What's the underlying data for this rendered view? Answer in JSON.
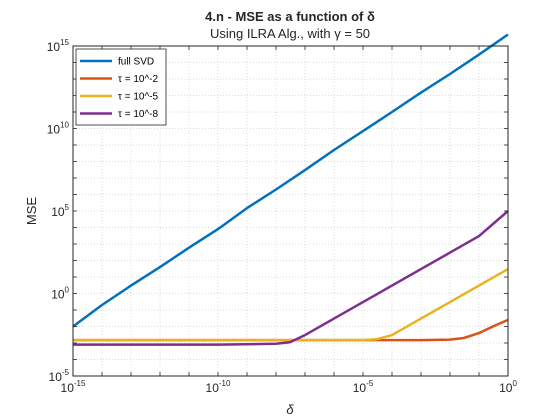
{
  "chart_data": {
    "type": "line",
    "title": "4.n - MSE as a function of δ",
    "subtitle": "Using ILRA Alg., with γ = 50",
    "xlabel": "δ",
    "ylabel": "MSE",
    "xscale": "log",
    "yscale": "log",
    "xlim": [
      1e-15,
      1
    ],
    "ylim": [
      1e-05,
      1000000000000000.0
    ],
    "grid": true,
    "legend_position": "top-left",
    "x_ticks": [
      {
        "base": "10",
        "exp": "-15"
      },
      {
        "base": "10",
        "exp": "-10"
      },
      {
        "base": "10",
        "exp": "-5"
      },
      {
        "base": "10",
        "exp": "0"
      }
    ],
    "y_ticks": [
      {
        "base": "10",
        "exp": "-5"
      },
      {
        "base": "10",
        "exp": "0"
      },
      {
        "base": "10",
        "exp": "5"
      },
      {
        "base": "10",
        "exp": "10"
      },
      {
        "base": "10",
        "exp": "15"
      }
    ],
    "series": [
      {
        "name": "full SVD",
        "color": "#0072BD",
        "x": [
          1e-15,
          1e-14,
          1e-13,
          1e-12,
          1e-11,
          1e-10,
          1e-09,
          1e-08,
          1e-07,
          1e-06,
          1e-05,
          0.0001,
          0.001,
          0.01,
          0.1,
          1
        ],
        "y": [
          0.01,
          0.2,
          3,
          40,
          600,
          8000,
          150000.0,
          2000000.0,
          30000000.0,
          500000000.0,
          7000000000.0,
          100000000000.0,
          1500000000000.0,
          20000000000000.0,
          300000000000000.0,
          5000000000000000.0
        ]
      },
      {
        "name": "τ = 10^-2",
        "color": "#D95319",
        "x": [
          1e-15,
          1e-10,
          1e-05,
          0.001,
          0.01,
          0.03,
          0.1,
          0.3,
          1
        ],
        "y": [
          0.0015,
          0.0015,
          0.0015,
          0.0015,
          0.0016,
          0.002,
          0.004,
          0.01,
          0.025
        ]
      },
      {
        "name": "τ = 10^-5",
        "color": "#EDB120",
        "x": [
          1e-15,
          1e-10,
          1e-05,
          3e-05,
          0.0001,
          0.001,
          0.01,
          0.1,
          1
        ],
        "y": [
          0.0015,
          0.0015,
          0.0015,
          0.0017,
          0.003,
          0.03,
          0.3,
          3,
          30
        ]
      },
      {
        "name": "τ = 10^-8",
        "color": "#7E2F8E",
        "x": [
          1e-15,
          1e-10,
          1e-08,
          3e-08,
          1e-07,
          1e-06,
          1e-05,
          0.0001,
          0.001,
          0.01,
          0.1,
          1
        ],
        "y": [
          0.0008,
          0.0008,
          0.0009,
          0.0011,
          0.003,
          0.03,
          0.3,
          3,
          30,
          300,
          3000,
          100000.0
        ]
      }
    ]
  }
}
